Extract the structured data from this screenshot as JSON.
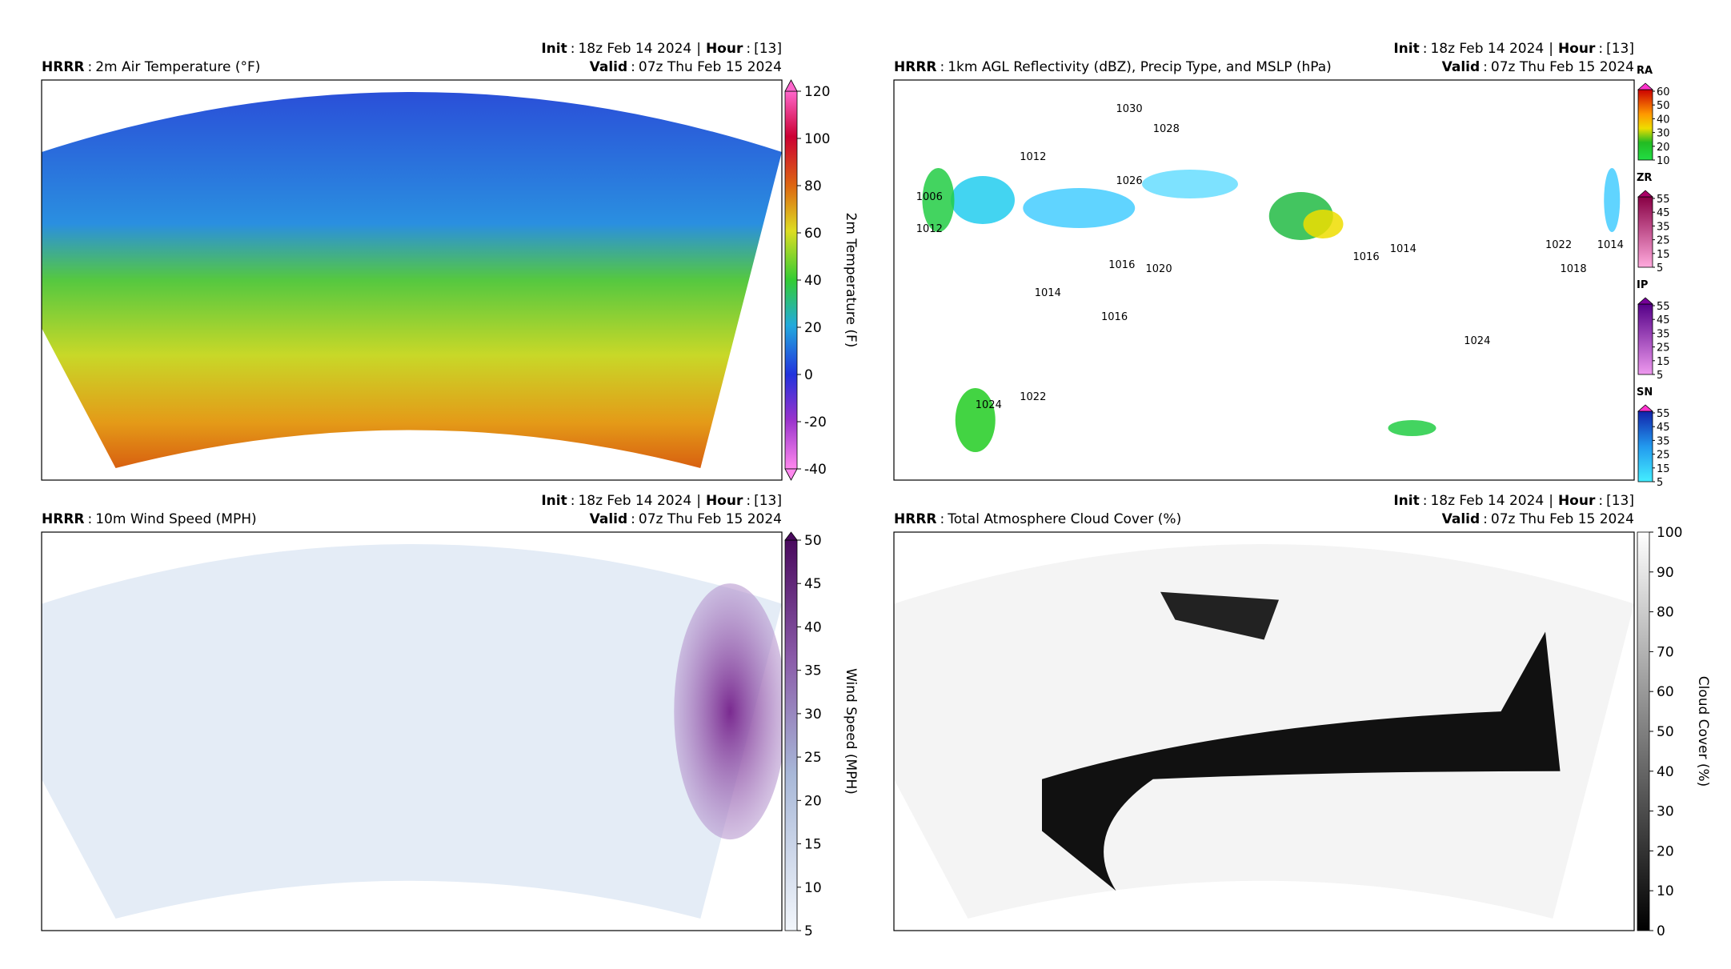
{
  "panels": [
    {
      "model": "HRRR",
      "sep": ":",
      "title": "2m Air Temperature (°F)",
      "init_label": "Init",
      "init": "18z Feb 14 2024",
      "divider": "|",
      "hour_label": "Hour",
      "hour": "[13]",
      "valid_label": "Valid",
      "valid": "07z Thu Feb 15 2024",
      "colorbars": [
        {
          "label": "2m Temperature (F)",
          "lim": [
            -40,
            120
          ],
          "ticks": [
            120,
            100,
            80,
            60,
            40,
            20,
            0,
            -20,
            -40
          ]
        }
      ]
    },
    {
      "model": "HRRR",
      "sep": ":",
      "title": "1km AGL Reflectivity (dBZ), Precip Type, and MSLP (hPa)",
      "init_label": "Init",
      "init": "18z Feb 14 2024",
      "divider": "|",
      "hour_label": "Hour",
      "hour": "[13]",
      "valid_label": "Valid",
      "valid": "07z Thu Feb 15 2024",
      "colorbars": [
        {
          "label": "RA",
          "lim": [
            10,
            60
          ],
          "ticks": [
            60,
            50,
            40,
            30,
            20,
            10
          ]
        },
        {
          "label": "ZR",
          "lim": [
            5,
            55
          ],
          "ticks": [
            55,
            45,
            35,
            25,
            15,
            5
          ]
        },
        {
          "label": "IP",
          "lim": [
            5,
            55
          ],
          "ticks": [
            55,
            45,
            35,
            25,
            15,
            5
          ]
        },
        {
          "label": "SN",
          "lim": [
            5,
            55
          ],
          "ticks": [
            55,
            45,
            35,
            25,
            15,
            5
          ]
        }
      ],
      "isobar_labels": [
        1028,
        1030,
        1026,
        1020,
        1016,
        1012,
        1006,
        1012,
        1014,
        1016,
        1022,
        1024,
        1024,
        1014,
        1018,
        1022,
        1014,
        1016
      ]
    },
    {
      "model": "HRRR",
      "sep": ":",
      "title": "10m Wind Speed (MPH)",
      "init_label": "Init",
      "init": "18z Feb 14 2024",
      "divider": "|",
      "hour_label": "Hour",
      "hour": "[13]",
      "valid_label": "Valid",
      "valid": "07z Thu Feb 15 2024",
      "colorbars": [
        {
          "label": "Wind Speed (MPH)",
          "lim": [
            5,
            50
          ],
          "ticks": [
            50,
            45,
            40,
            35,
            30,
            25,
            20,
            15,
            10,
            5
          ]
        }
      ]
    },
    {
      "model": "HRRR",
      "sep": ":",
      "title": "Total Atmosphere Cloud Cover (%)",
      "init_label": "Init",
      "init": "18z Feb 14 2024",
      "divider": "|",
      "hour_label": "Hour",
      "hour": "[13]",
      "valid_label": "Valid",
      "valid": "07z Thu Feb 15 2024",
      "colorbars": [
        {
          "label": "Cloud Cover (%)",
          "lim": [
            0,
            100
          ],
          "ticks": [
            100,
            90,
            80,
            70,
            60,
            50,
            40,
            30,
            20,
            10,
            0
          ]
        }
      ]
    }
  ]
}
